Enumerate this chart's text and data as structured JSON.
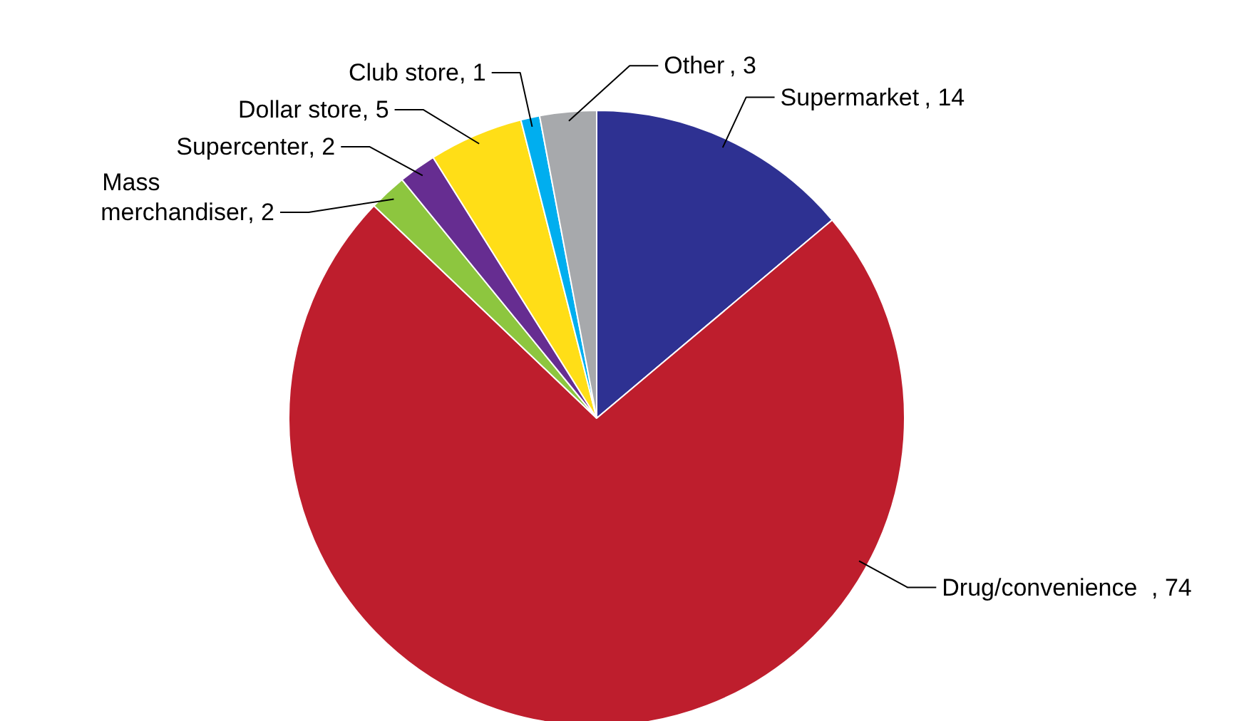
{
  "chart_data": {
    "type": "pie",
    "categories": [
      "Supermarket",
      "Drug/convenience",
      "Mass merchandiser",
      "Supercenter",
      "Dollar store",
      "Club store",
      "Other"
    ],
    "values": [
      14,
      74,
      2,
      2,
      5,
      1,
      3
    ],
    "colors": [
      "#2e3192",
      "#be1e2d",
      "#8dc63f",
      "#662d91",
      "#ffde17",
      "#00aeef",
      "#a7a9ac"
    ],
    "value_labels": [
      ", 14",
      ", 74",
      ", 2",
      ", 2",
      ", 5",
      ", 1",
      ", 3"
    ]
  }
}
